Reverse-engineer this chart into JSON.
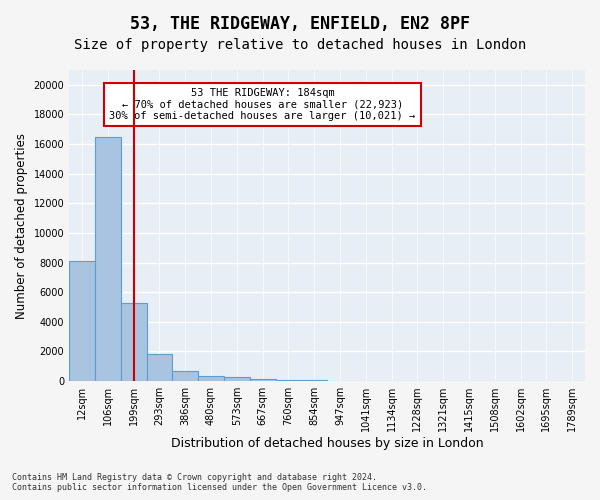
{
  "title": "53, THE RIDGEWAY, ENFIELD, EN2 8PF",
  "subtitle": "Size of property relative to detached houses in London",
  "xlabel": "Distribution of detached houses by size in London",
  "ylabel": "Number of detached properties",
  "bar_values": [
    8100,
    16500,
    5300,
    1800,
    700,
    350,
    250,
    130,
    80,
    50,
    35,
    20,
    15,
    10,
    8,
    6,
    5,
    4,
    3,
    2
  ],
  "bar_color": "#a8c4e0",
  "bar_edge_color": "#5a9fd4",
  "x_labels": [
    "12sqm",
    "106sqm",
    "199sqm",
    "293sqm",
    "386sqm",
    "480sqm",
    "573sqm",
    "667sqm",
    "760sqm",
    "854sqm",
    "947sqm",
    "1041sqm",
    "1134sqm",
    "1228sqm",
    "1321sqm",
    "1415sqm",
    "1508sqm",
    "1602sqm",
    "1695sqm",
    "1789sqm"
  ],
  "red_line_x": 2,
  "annotation_text": "53 THE RIDGEWAY: 184sqm\n← 70% of detached houses are smaller (22,923)\n30% of semi-detached houses are larger (10,021) →",
  "annotation_box_color": "#ffffff",
  "annotation_border_color": "#cc0000",
  "ylim": [
    0,
    21000
  ],
  "yticks": [
    0,
    2000,
    4000,
    6000,
    8000,
    10000,
    12000,
    14000,
    16000,
    18000,
    20000
  ],
  "footer_line1": "Contains HM Land Registry data © Crown copyright and database right 2024.",
  "footer_line2": "Contains public sector information licensed under the Open Government Licence v3.0.",
  "bg_color": "#e8eef5",
  "grid_color": "#ffffff",
  "red_line_color": "#cc0000",
  "title_fontsize": 12,
  "subtitle_fontsize": 10,
  "tick_fontsize": 7,
  "ylabel_fontsize": 8.5,
  "xlabel_fontsize": 9,
  "annotation_fontsize": 7.5
}
